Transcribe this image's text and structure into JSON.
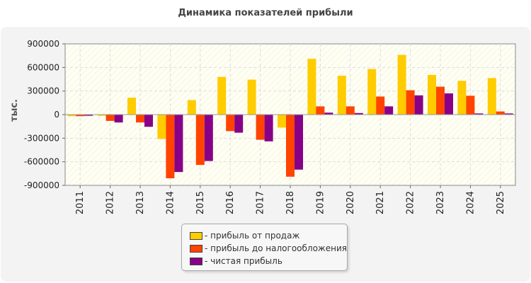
{
  "chart_data": {
    "type": "bar",
    "title": "Динамика показателей прибыли",
    "ylabel": "тыс.",
    "xlabel": "",
    "categories": [
      "2011",
      "2012",
      "2013",
      "2014",
      "2015",
      "2016",
      "2017",
      "2018",
      "2019",
      "2020",
      "2021",
      "2022",
      "2023",
      "2024",
      "2025"
    ],
    "ylim": [
      -900000,
      900000
    ],
    "yticks": [
      900000,
      600000,
      300000,
      0,
      -300000,
      -600000,
      -900000
    ],
    "ytick_labels": [
      "900000",
      "600000",
      "300000",
      "0",
      "-300000",
      "-600000",
      "-900000"
    ],
    "grid": true,
    "legend_position": "bottom-center",
    "series": [
      {
        "name": "прибыль от продаж",
        "color": "#ffcc00",
        "values": [
          -20000,
          -15000,
          215000,
          -310000,
          185000,
          480000,
          445000,
          -165000,
          710000,
          495000,
          580000,
          760000,
          505000,
          430000,
          465000
        ]
      },
      {
        "name": "прибыль до налогообложения",
        "color": "#ff4400",
        "values": [
          -20000,
          -80000,
          -100000,
          -810000,
          -640000,
          -210000,
          -320000,
          -790000,
          105000,
          105000,
          230000,
          310000,
          355000,
          240000,
          40000
        ]
      },
      {
        "name": "чистая прибыль",
        "color": "#880088",
        "values": [
          -15000,
          -100000,
          -155000,
          -730000,
          -590000,
          -230000,
          -340000,
          -700000,
          25000,
          20000,
          105000,
          245000,
          270000,
          15000,
          15000
        ]
      }
    ]
  }
}
